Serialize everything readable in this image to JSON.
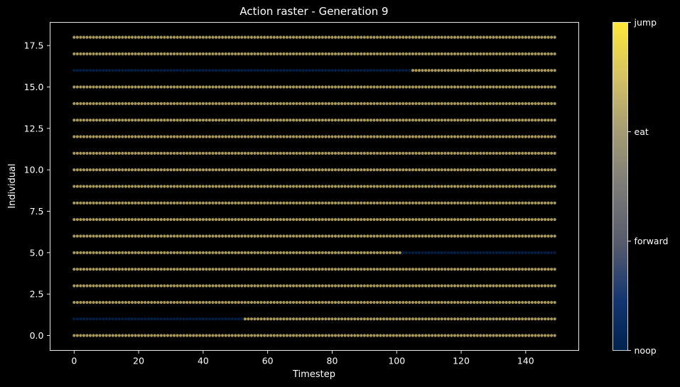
{
  "chart_data": {
    "type": "scatter",
    "title": "Action raster - Generation 9",
    "xlabel": "Timestep",
    "ylabel": "Individual",
    "xlim": [
      -7.45,
      156.45
    ],
    "ylim": [
      -0.9,
      18.9
    ],
    "xticks": [
      0,
      20,
      40,
      60,
      80,
      100,
      120,
      140
    ],
    "xtick_labels": [
      "0",
      "20",
      "40",
      "60",
      "80",
      "100",
      "120",
      "140"
    ],
    "yticks": [
      0,
      2.5,
      5,
      7.5,
      10,
      12.5,
      15,
      17.5
    ],
    "ytick_labels": [
      "0.0",
      "2.5",
      "5.0",
      "7.5",
      "10.0",
      "12.5",
      "15.0",
      "17.5"
    ],
    "grid": false,
    "timesteps": [
      0,
      149
    ],
    "individuals": [
      0,
      18
    ],
    "default_action": "eat",
    "action_segments": [
      {
        "individual": 1,
        "from": 0,
        "to": 52,
        "action": "noop"
      },
      {
        "individual": 5,
        "from": 102,
        "to": 149,
        "action": "noop"
      },
      {
        "individual": 16,
        "from": 0,
        "to": 104,
        "action": "noop"
      }
    ],
    "colorbar": {
      "colormap": "cividis",
      "labels": [
        "noop",
        "forward",
        "eat",
        "jump"
      ],
      "values": [
        0,
        1,
        2,
        3
      ],
      "colors": [
        "#00224e",
        "#7c7b78",
        "#c6b46a",
        "#fee838"
      ],
      "point_colors": {
        "noop": "#00224e",
        "eat": "#c6b46a"
      }
    }
  }
}
